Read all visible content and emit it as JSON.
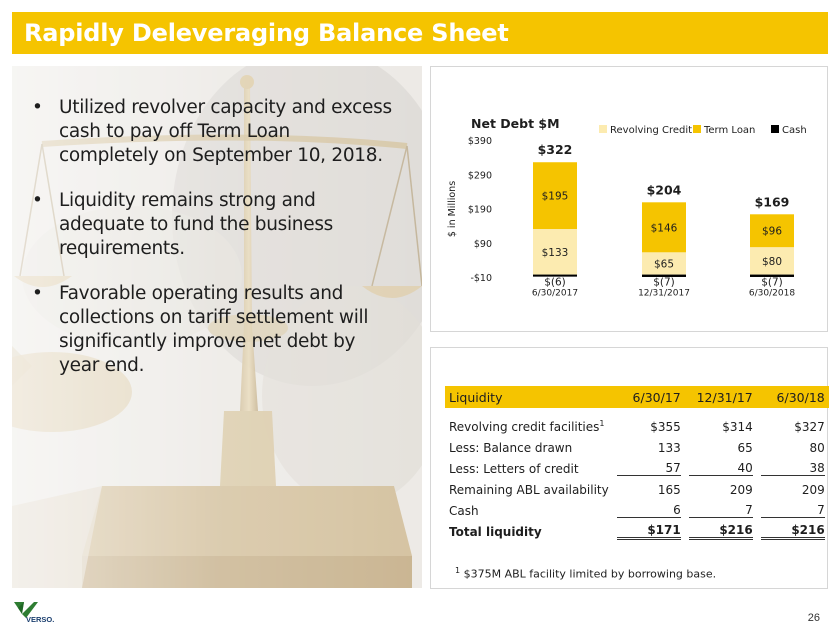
{
  "slide": {
    "title": "Rapidly Deleveraging Balance Sheet",
    "page_number": "26",
    "logo_text": "VERSO."
  },
  "bullets": [
    "Utilized revolver capacity and excess cash to pay off Term Loan completely on September 10, 2018.",
    "Liquidity remains strong and adequate to fund the business requirements.",
    "Favorable operating results and collections on tariff settlement will significantly improve net debt by year end."
  ],
  "bullet_symbol": "•",
  "colors": {
    "brand_yellow": "#f5c400",
    "revolving_credit": "#fcebb0",
    "term_loan": "#f5c400",
    "cash": "#000000"
  },
  "chart_data": {
    "type": "bar",
    "stacked": true,
    "title": "Net Debt $M",
    "ylabel": "$ in Millions",
    "xlabel": "",
    "ylim": [
      -10,
      390
    ],
    "yticks": [
      -10,
      90,
      190,
      290,
      390
    ],
    "ytick_labels": [
      "-$10",
      "$90",
      "$190",
      "$290",
      "$390"
    ],
    "categories": [
      "6/30/2017",
      "12/31/2017",
      "6/30/2018"
    ],
    "series": [
      {
        "name": "Revolving Credit",
        "values": [
          133,
          65,
          80
        ],
        "labels": [
          "$133",
          "$65",
          "$80"
        ]
      },
      {
        "name": "Term Loan",
        "values": [
          195,
          146,
          96
        ],
        "labels": [
          "$195",
          "$146",
          "$96"
        ]
      },
      {
        "name": "Cash",
        "values": [
          -6,
          -7,
          -7
        ],
        "labels": [
          "$(6)",
          "$(7)",
          "$(7)"
        ]
      }
    ],
    "totals": [
      322,
      204,
      169
    ],
    "total_labels": [
      "$322",
      "$204",
      "$169"
    ],
    "legend": "top-right"
  },
  "liquidity_table": {
    "headers": [
      "Liquidity",
      "6/30/17",
      "12/31/17",
      "6/30/18"
    ],
    "rows": [
      {
        "label": "Revolving credit facilities",
        "sup": "1",
        "values": [
          "$355",
          "$314",
          "$327"
        ]
      },
      {
        "label": "Less: Balance drawn",
        "values": [
          "133",
          "65",
          "80"
        ]
      },
      {
        "label": "Less: Letters of credit",
        "values": [
          "57",
          "40",
          "38"
        ]
      },
      {
        "label": "Remaining ABL availability",
        "values": [
          "165",
          "209",
          "209"
        ]
      },
      {
        "label": "Cash",
        "values": [
          "6",
          "7",
          "7"
        ]
      },
      {
        "label": "Total liquidity",
        "values": [
          "$171",
          "$216",
          "$216"
        ]
      }
    ],
    "footnote_mark": "1",
    "footnote": "$375M ABL facility limited by borrowing base."
  }
}
